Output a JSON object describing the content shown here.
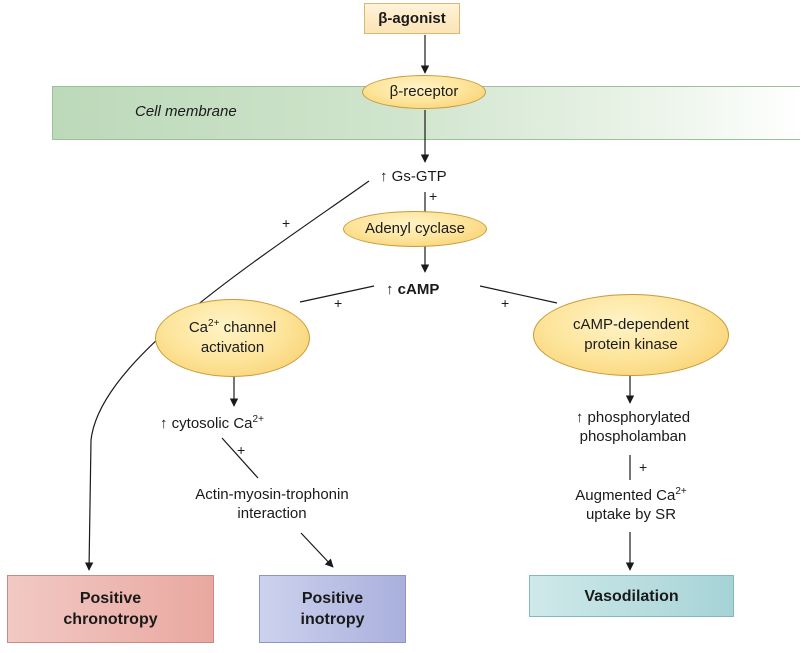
{
  "nodes": {
    "agonist": "β-agonist",
    "receptor": "β-receptor",
    "membrane": "Cell membrane",
    "gs": "↑ Gs-GTP",
    "adenyl": "Adenyl cyclase",
    "camp": "↑ cAMP",
    "ca_channel_line1": "Ca",
    "ca_channel_sup": "2+",
    "ca_channel_line1_rest": " channel",
    "ca_channel_line2": "activation",
    "pka_line1": "cAMP-dependent",
    "pka_line2": "protein kinase",
    "cytosolic": "↑ cytosolic Ca",
    "cytosolic_sup": "2+",
    "actin_line1": "Actin-myosin-trophonin",
    "actin_line2": "interaction",
    "phos_line1": "↑ phosphorylated",
    "phos_line2": "phospholamban",
    "aug_line1": "Augmented Ca",
    "aug_sup": "2+",
    "aug_line2": "uptake by SR"
  },
  "outcomes": {
    "chrono_line1": "Positive",
    "chrono_line2": "chronotropy",
    "ino_line1": "Positive",
    "ino_line2": "inotropy",
    "vaso": "Vasodilation"
  },
  "signs": {
    "plus": "+"
  },
  "colors": {
    "membrane": "#cfe4cc",
    "ellipse_fill": "#fde49a",
    "chronotropy": "#eab0a9",
    "inotropy": "#b8bee4",
    "vasodilation": "#b6dcdf",
    "agonist_box": "#fbe8c0"
  }
}
